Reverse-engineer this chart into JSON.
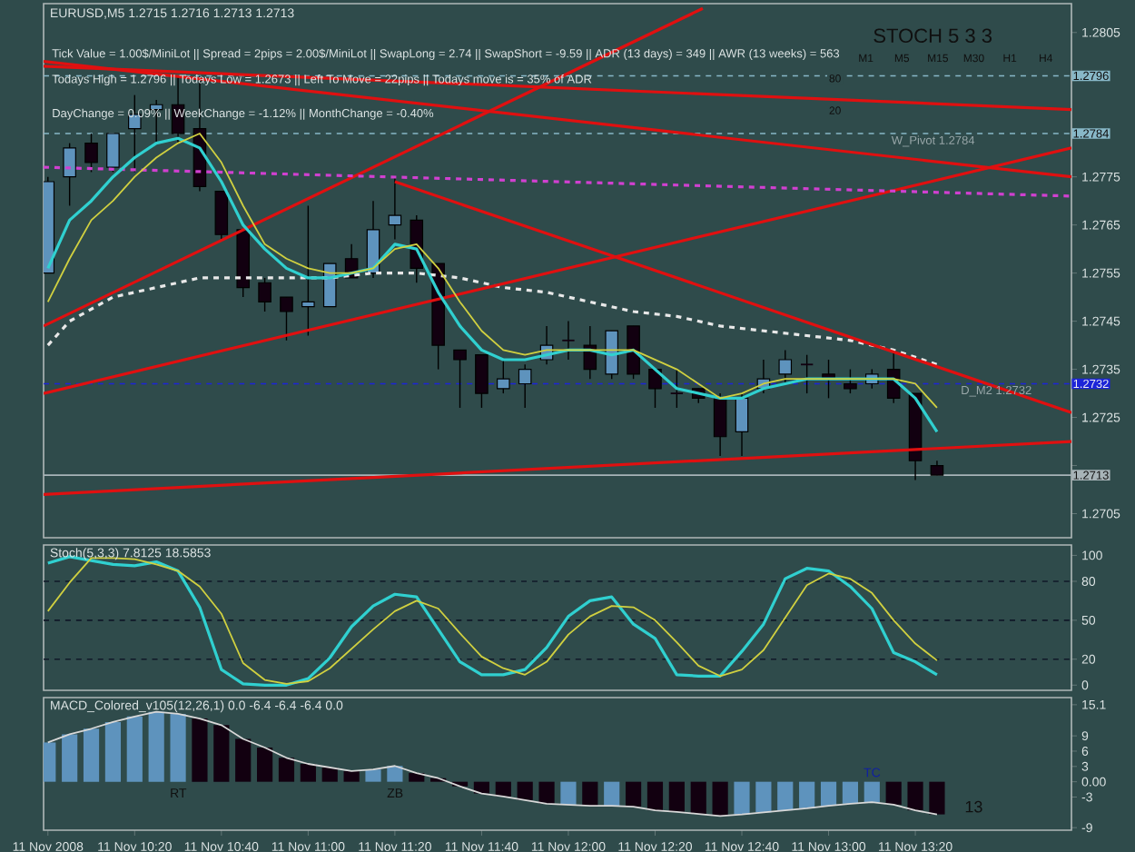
{
  "chart_data": [
    {
      "type": "candlestick",
      "title": "EURUSD,M5  1.2715 1.2716 1.2713 1.2713",
      "x": [
        "2008-11-11T10:00",
        "2008-11-11T10:05",
        "2008-11-11T10:10",
        "2008-11-11T10:15",
        "2008-11-11T10:20",
        "2008-11-11T10:25",
        "2008-11-11T10:30",
        "2008-11-11T10:35",
        "2008-11-11T10:40",
        "2008-11-11T10:45",
        "2008-11-11T10:50",
        "2008-11-11T10:55",
        "2008-11-11T11:00",
        "2008-11-11T11:05",
        "2008-11-11T11:10",
        "2008-11-11T11:15",
        "2008-11-11T11:20",
        "2008-11-11T11:25",
        "2008-11-11T11:30",
        "2008-11-11T11:35",
        "2008-11-11T11:40",
        "2008-11-11T11:45",
        "2008-11-11T11:50",
        "2008-11-11T11:55",
        "2008-11-11T12:00",
        "2008-11-11T12:05",
        "2008-11-11T12:10",
        "2008-11-11T12:15",
        "2008-11-11T12:20",
        "2008-11-11T12:25",
        "2008-11-11T12:30",
        "2008-11-11T12:35",
        "2008-11-11T12:40",
        "2008-11-11T12:45",
        "2008-11-11T12:50",
        "2008-11-11T12:55",
        "2008-11-11T13:00",
        "2008-11-11T13:05",
        "2008-11-11T13:10",
        "2008-11-11T13:15",
        "2008-11-11T13:20",
        "2008-11-11T13:25"
      ],
      "ohlc": [
        [
          1.2755,
          1.2775,
          1.2755,
          1.2774
        ],
        [
          1.2775,
          1.2782,
          1.2769,
          1.2781
        ],
        [
          1.2782,
          1.2784,
          1.2776,
          1.2778
        ],
        [
          1.2777,
          1.2784,
          1.2776,
          1.2784
        ],
        [
          1.2785,
          1.2792,
          1.2776,
          1.2788
        ],
        [
          1.2789,
          1.2791,
          1.2782,
          1.279
        ],
        [
          1.279,
          1.2796,
          1.2782,
          1.2784
        ],
        [
          1.2785,
          1.2796,
          1.2772,
          1.2773
        ],
        [
          1.2772,
          1.2772,
          1.2762,
          1.2763
        ],
        [
          1.2764,
          1.2764,
          1.275,
          1.2752
        ],
        [
          1.2753,
          1.2754,
          1.2747,
          1.2749
        ],
        [
          1.275,
          1.275,
          1.2741,
          1.2747
        ],
        [
          1.2748,
          1.2769,
          1.2742,
          1.2749
        ],
        [
          1.2748,
          1.2757,
          1.2748,
          1.2757
        ],
        [
          1.2758,
          1.2761,
          1.2754,
          1.2754
        ],
        [
          1.2755,
          1.277,
          1.2754,
          1.2764
        ],
        [
          1.2765,
          1.2775,
          1.2762,
          1.2767
        ],
        [
          1.2766,
          1.2767,
          1.2753,
          1.2756
        ],
        [
          1.2757,
          1.2757,
          1.2735,
          1.274
        ],
        [
          1.2739,
          1.2739,
          1.2727,
          1.2737
        ],
        [
          1.2738,
          1.2738,
          1.2727,
          1.273
        ],
        [
          1.2731,
          1.2737,
          1.273,
          1.2733
        ],
        [
          1.2732,
          1.2736,
          1.2727,
          1.2735
        ],
        [
          1.2737,
          1.2744,
          1.2736,
          1.274
        ],
        [
          1.2741,
          1.2745,
          1.2737,
          1.2741
        ],
        [
          1.274,
          1.2744,
          1.2733,
          1.2735
        ],
        [
          1.2734,
          1.2743,
          1.2733,
          1.2743
        ],
        [
          1.2744,
          1.2744,
          1.2733,
          1.2734
        ],
        [
          1.2735,
          1.2735,
          1.2727,
          1.2731
        ],
        [
          1.273,
          1.2735,
          1.2727,
          1.273
        ],
        [
          1.2731,
          1.2731,
          1.2728,
          1.2729
        ],
        [
          1.2729,
          1.273,
          1.2717,
          1.2721
        ],
        [
          1.2722,
          1.273,
          1.2717,
          1.2729
        ],
        [
          1.2731,
          1.2737,
          1.273,
          1.2733
        ],
        [
          1.2734,
          1.2739,
          1.2732,
          1.2737
        ],
        [
          1.2736,
          1.2738,
          1.273,
          1.2736
        ],
        [
          1.2734,
          1.2737,
          1.2729,
          1.2733
        ],
        [
          1.2732,
          1.2735,
          1.273,
          1.2731
        ],
        [
          1.2732,
          1.2735,
          1.2731,
          1.2734
        ],
        [
          1.2735,
          1.2739,
          1.2728,
          1.2729
        ],
        [
          1.273,
          1.273,
          1.2712,
          1.2716
        ],
        [
          1.2715,
          1.2716,
          1.2713,
          1.2713
        ]
      ],
      "colors": [
        "#5e93bd",
        "#5e93bd",
        "#120010",
        "#5e93bd",
        "#5e93bd",
        "#5e93bd",
        "#120010",
        "#120010",
        "#120010",
        "#120010",
        "#120010",
        "#120010",
        "#5e93bd",
        "#5e93bd",
        "#120010",
        "#5e93bd",
        "#5e93bd",
        "#120010",
        "#120010",
        "#120010",
        "#120010",
        "#5e93bd",
        "#5e93bd",
        "#5e93bd",
        "#120010",
        "#120010",
        "#5e93bd",
        "#120010",
        "#120010",
        "#120010",
        "#120010",
        "#120010",
        "#5e93bd",
        "#5e93bd",
        "#5e93bd",
        "#120010",
        "#120010",
        "#120010",
        "#5e93bd",
        "#120010",
        "#120010",
        "#120010"
      ],
      "series": [
        {
          "type": "line",
          "color": "#e8e8e8",
          "line_style": "dashed",
          "x": [
            "2008-11-11T10:00",
            "2008-11-11T10:05",
            "2008-11-11T10:15",
            "2008-11-11T10:25",
            "2008-11-11T10:35",
            "2008-11-11T10:45",
            "2008-11-11T10:55",
            "2008-11-11T11:05",
            "2008-11-11T11:15",
            "2008-11-11T11:25",
            "2008-11-11T11:35",
            "2008-11-11T11:45",
            "2008-11-11T11:55",
            "2008-11-11T12:05",
            "2008-11-11T12:15",
            "2008-11-11T12:25",
            "2008-11-11T12:35",
            "2008-11-11T12:45",
            "2008-11-11T12:55",
            "2008-11-11T13:05",
            "2008-11-11T13:15",
            "2008-11-11T13:25"
          ],
          "values": [
            1.274,
            1.2745,
            1.275,
            1.2752,
            1.2754,
            1.2754,
            1.2754,
            1.2754,
            1.2755,
            1.2755,
            1.2754,
            1.2752,
            1.2751,
            1.2749,
            1.2747,
            1.2746,
            1.2744,
            1.2743,
            1.2742,
            1.2741,
            1.2739,
            1.2736
          ]
        },
        {
          "type": "line",
          "color": "#e01010",
          "x": [
            "2008-11-11T09:59",
            "2008-11-11T12:31"
          ],
          "values": [
            1.2744,
            1.281
          ]
        },
        {
          "type": "line",
          "color": "#e01010",
          "x": [
            "2008-11-11T09:59",
            "2008-11-11T13:56"
          ],
          "values": [
            1.273,
            1.2781
          ]
        },
        {
          "type": "line",
          "color": "#e01010",
          "x": [
            "2008-11-11T09:59",
            "2008-11-11T13:56"
          ],
          "values": [
            1.2798,
            1.2789
          ]
        },
        {
          "type": "line",
          "color": "#e01010",
          "x": [
            "2008-11-11T09:59",
            "2008-11-11T13:56"
          ],
          "values": [
            1.2799,
            1.2775
          ]
        },
        {
          "type": "line",
          "color": "#e01010",
          "x": [
            "2008-11-11T11:20",
            "2008-11-11T13:56"
          ],
          "values": [
            1.2774,
            1.2726
          ]
        },
        {
          "type": "line",
          "color": "#e01010",
          "x": [
            "2008-11-11T09:59",
            "2008-11-11T13:56"
          ],
          "values": [
            1.2709,
            1.272
          ]
        },
        {
          "type": "line",
          "color": "#d040d0",
          "line_style": "dashed",
          "x": [
            "2008-11-11T09:59",
            "2008-11-11T13:56"
          ],
          "values": [
            1.2777,
            1.2771
          ]
        },
        {
          "type": "line",
          "color": "#30d0d0",
          "values": [
            1.2756,
            1.2766,
            1.277,
            1.2775,
            1.2779,
            1.2782,
            1.2783,
            1.2781,
            1.2774,
            1.2765,
            1.276,
            1.2756,
            1.2754,
            1.2754,
            1.2755,
            1.2756,
            1.2761,
            1.276,
            1.2751,
            1.2744,
            1.2739,
            1.2737,
            1.2737,
            1.2738,
            1.2739,
            1.2739,
            1.2738,
            1.2739,
            1.2735,
            1.2731,
            1.273,
            1.2729,
            1.2729,
            1.2731,
            1.2732,
            1.2733,
            1.2733,
            1.2733,
            1.2733,
            1.2733,
            1.2729,
            1.2722
          ]
        },
        {
          "type": "line",
          "color": "#d0d040",
          "values": [
            1.2749,
            1.2758,
            1.2766,
            1.277,
            1.2775,
            1.2779,
            1.2782,
            1.2784,
            1.2778,
            1.2769,
            1.2761,
            1.2758,
            1.2756,
            1.2755,
            1.2755,
            1.2756,
            1.276,
            1.2761,
            1.2756,
            1.2749,
            1.2743,
            1.2739,
            1.2738,
            1.2739,
            1.2739,
            1.2739,
            1.2739,
            1.2739,
            1.2737,
            1.2735,
            1.2732,
            1.2729,
            1.273,
            1.2732,
            1.2733,
            1.2733,
            1.2733,
            1.2733,
            1.2733,
            1.2733,
            1.2732,
            1.2727
          ]
        }
      ],
      "ref_lines": [
        {
          "axis": "y",
          "value": 1.2796,
          "label": "1.2796",
          "color": "#88b8c8",
          "line_style": "dashed"
        },
        {
          "axis": "y",
          "value": 1.2784,
          "label": "1.2784",
          "color": "#88b8c8",
          "line_style": "dashed"
        },
        {
          "axis": "y",
          "value": 1.2732,
          "label": "1.2732",
          "color": "#1c24d8",
          "line_style": "dashed"
        },
        {
          "axis": "y",
          "value": 1.2713,
          "label": "1.2713",
          "color": "#a8b4b8",
          "line_style": "solid"
        }
      ],
      "annotations": [
        "Tick Value = 1.00$/MiniLot || Spread = 2pips = 2.00$/MiniLot || SwapLong = 2.74 || SwapShort = -9.59 || ADR (13 days) = 349 || AWR (13 weeks) = 563",
        "Todays High = 1.2796 || Todays Low = 1.2673 || Left To Move = 22pips || Todays move is = 35% of ADR",
        "DayChange = 0.09% || WeekChange = -1.12% || MonthChange = -0.40%",
        "STOCH 5 3 3",
        "M1",
        "M5",
        "M15",
        "M30",
        "H1",
        "H4",
        "80",
        "20",
        {
          "text": "W_Pivot 1.2784",
          "x": "2008-11-11T13:14",
          "y": 1.2784
        },
        {
          "text": "D_M2 1.2732",
          "x": "2008-11-11T13:30",
          "y": 1.2732
        }
      ],
      "xlim": [
        "2008-11-11T09:59",
        "2008-11-11T13:56"
      ],
      "ylim": [
        1.27,
        1.2811
      ],
      "yticks": [
        1.2805,
        {
          "value": 1.2795,
          "label": null
        },
        {
          "value": 1.2785,
          "label": null
        },
        1.2775,
        1.2765,
        1.2755,
        1.2745,
        1.2735,
        1.2725,
        {
          "value": 1.2715,
          "label": null
        },
        1.2705
      ],
      "tick_labels": "y"
    },
    {
      "type": "line",
      "title": "Stoch(5,3,3) 7.8125 18.5853",
      "x": [
        "2008-11-11T10:00",
        "2008-11-11T10:05",
        "2008-11-11T10:10",
        "2008-11-11T10:15",
        "2008-11-11T10:20",
        "2008-11-11T10:25",
        "2008-11-11T10:30",
        "2008-11-11T10:35",
        "2008-11-11T10:40",
        "2008-11-11T10:45",
        "2008-11-11T10:50",
        "2008-11-11T10:55",
        "2008-11-11T11:00",
        "2008-11-11T11:05",
        "2008-11-11T11:10",
        "2008-11-11T11:15",
        "2008-11-11T11:20",
        "2008-11-11T11:25",
        "2008-11-11T11:30",
        "2008-11-11T11:35",
        "2008-11-11T11:40",
        "2008-11-11T11:45",
        "2008-11-11T11:50",
        "2008-11-11T11:55",
        "2008-11-11T12:00",
        "2008-11-11T12:05",
        "2008-11-11T12:10",
        "2008-11-11T12:15",
        "2008-11-11T12:20",
        "2008-11-11T12:25",
        "2008-11-11T12:30",
        "2008-11-11T12:35",
        "2008-11-11T12:40",
        "2008-11-11T12:45",
        "2008-11-11T12:50",
        "2008-11-11T12:55",
        "2008-11-11T13:00",
        "2008-11-11T13:05",
        "2008-11-11T13:10",
        "2008-11-11T13:15",
        "2008-11-11T13:20",
        "2008-11-11T13:25"
      ],
      "series": [
        {
          "color": "#30d0d0",
          "values": [
            94,
            99,
            96,
            93,
            92,
            95,
            88,
            60,
            12,
            1,
            0,
            0,
            5,
            21,
            45,
            61,
            70,
            68,
            43,
            18,
            8,
            8,
            12,
            29,
            53,
            65,
            68,
            47,
            36,
            8,
            7,
            7,
            26,
            47,
            82,
            90,
            88,
            76,
            59,
            25,
            18,
            8
          ]
        },
        {
          "color": "#d0d040",
          "values": [
            57,
            79,
            98,
            98,
            97,
            93,
            88,
            76,
            55,
            17,
            4,
            1,
            3,
            13,
            28,
            43,
            57,
            65,
            59,
            40,
            22,
            13,
            8,
            18,
            39,
            53,
            61,
            60,
            50,
            33,
            15,
            7,
            12,
            27,
            52,
            77,
            86,
            82,
            71,
            50,
            32,
            19
          ]
        }
      ],
      "ref_lines": [
        {
          "axis": "y",
          "value": 80,
          "color": "#101828",
          "line_style": "dashed"
        },
        {
          "axis": "y",
          "value": 50,
          "color": "#101828",
          "line_style": "dashed"
        },
        {
          "axis": "y",
          "value": 20,
          "color": "#101828",
          "line_style": "dashed"
        }
      ],
      "xlim": [
        "2008-11-11T09:59",
        "2008-11-11T13:56"
      ],
      "ylim": [
        -4,
        108
      ],
      "yticks": [
        0,
        20,
        50,
        80,
        100
      ],
      "tick_labels": "y"
    },
    {
      "type": "bar",
      "title": "MACD_Colored_v105(12,26,1) 0.0 -6.4 -6.4 -6.4 0.0",
      "x": [
        "2008-11-11T10:00",
        "2008-11-11T10:05",
        "2008-11-11T10:10",
        "2008-11-11T10:15",
        "2008-11-11T10:20",
        "2008-11-11T10:25",
        "2008-11-11T10:30",
        "2008-11-11T10:35",
        "2008-11-11T10:40",
        "2008-11-11T10:45",
        "2008-11-11T10:50",
        "2008-11-11T10:55",
        "2008-11-11T11:00",
        "2008-11-11T11:05",
        "2008-11-11T11:10",
        "2008-11-11T11:15",
        "2008-11-11T11:20",
        "2008-11-11T11:25",
        "2008-11-11T11:30",
        "2008-11-11T11:35",
        "2008-11-11T11:40",
        "2008-11-11T11:45",
        "2008-11-11T11:50",
        "2008-11-11T11:55",
        "2008-11-11T12:00",
        "2008-11-11T12:05",
        "2008-11-11T12:10",
        "2008-11-11T12:15",
        "2008-11-11T12:20",
        "2008-11-11T12:25",
        "2008-11-11T12:30",
        "2008-11-11T12:35",
        "2008-11-11T12:40",
        "2008-11-11T12:45",
        "2008-11-11T12:50",
        "2008-11-11T12:55",
        "2008-11-11T13:00",
        "2008-11-11T13:05",
        "2008-11-11T13:10",
        "2008-11-11T13:15",
        "2008-11-11T13:20",
        "2008-11-11T13:25"
      ],
      "series": [
        {
          "type": "bar",
          "colors": [
            "#5e93bd",
            "#5e93bd",
            "#5e93bd",
            "#5e93bd",
            "#5e93bd",
            "#5e93bd",
            "#5e93bd",
            "#120010",
            "#120010",
            "#120010",
            "#120010",
            "#120010",
            "#120010",
            "#120010",
            "#120010",
            "#5e93bd",
            "#5e93bd",
            "#120010",
            "#120010",
            "#120010",
            "#120010",
            "#120010",
            "#120010",
            "#120010",
            "#5e93bd",
            "#120010",
            "#5e93bd",
            "#120010",
            "#120010",
            "#120010",
            "#120010",
            "#120010",
            "#5e93bd",
            "#5e93bd",
            "#5e93bd",
            "#5e93bd",
            "#5e93bd",
            "#5e93bd",
            "#5e93bd",
            "#120010",
            "#120010",
            "#120010"
          ],
          "values": [
            7.7,
            9.3,
            10.4,
            11.7,
            12.8,
            13.7,
            13.3,
            12.4,
            11.1,
            8.4,
            6.7,
            4.7,
            3.5,
            2.8,
            2.1,
            2.4,
            3.1,
            1.7,
            0.7,
            -0.9,
            -2.3,
            -2.9,
            -3.6,
            -4.3,
            -4.5,
            -4.7,
            -4.7,
            -4.9,
            -5.6,
            -5.9,
            -6.3,
            -6.7,
            -6.4,
            -6.0,
            -5.6,
            -5.2,
            -4.7,
            -4.3,
            -4.0,
            -4.5,
            -5.6,
            -6.4
          ]
        },
        {
          "type": "line",
          "color": "#d8d8d8",
          "values": [
            7.7,
            9.3,
            10.4,
            11.7,
            12.8,
            13.7,
            13.3,
            12.4,
            11.1,
            8.4,
            6.7,
            4.7,
            3.5,
            2.8,
            2.1,
            2.4,
            3.1,
            1.7,
            0.7,
            -0.9,
            -2.3,
            -2.9,
            -3.6,
            -4.3,
            -4.5,
            -4.7,
            -4.7,
            -4.9,
            -5.6,
            -5.9,
            -6.3,
            -6.7,
            -6.4,
            -6.0,
            -5.6,
            -5.2,
            -4.7,
            -4.3,
            -4.0,
            -4.5,
            -5.6,
            -6.4
          ]
        }
      ],
      "annotations": [
        "RT",
        "ZB",
        "TC",
        "13"
      ],
      "xlim": [
        "2008-11-11T09:59",
        "2008-11-11T13:56"
      ],
      "xticks": [
        {
          "value": "2008-11-11T10:00",
          "label": "11 Nov 2008"
        },
        {
          "value": "2008-11-11T10:20",
          "label": "11 Nov 10:20"
        },
        {
          "value": "2008-11-11T10:40",
          "label": "11 Nov 10:40"
        },
        {
          "value": "2008-11-11T11:00",
          "label": "11 Nov 11:00"
        },
        {
          "value": "2008-11-11T11:20",
          "label": "11 Nov 11:20"
        },
        {
          "value": "2008-11-11T11:40",
          "label": "11 Nov 11:40"
        },
        {
          "value": "2008-11-11T12:00",
          "label": "11 Nov 12:00"
        },
        {
          "value": "2008-11-11T12:20",
          "label": "11 Nov 12:20"
        },
        {
          "value": "2008-11-11T12:40",
          "label": "11 Nov 12:40"
        },
        {
          "value": "2008-11-11T13:00",
          "label": "11 Nov 13:00"
        },
        {
          "value": "2008-11-11T13:20",
          "label": "11 Nov 13:20"
        }
      ],
      "ylim": [
        -9.5,
        16.5
      ],
      "yticks": [
        15.1,
        9,
        6,
        3,
        {
          "value": 0,
          "label": "0.00"
        },
        -3,
        -9
      ]
    }
  ]
}
